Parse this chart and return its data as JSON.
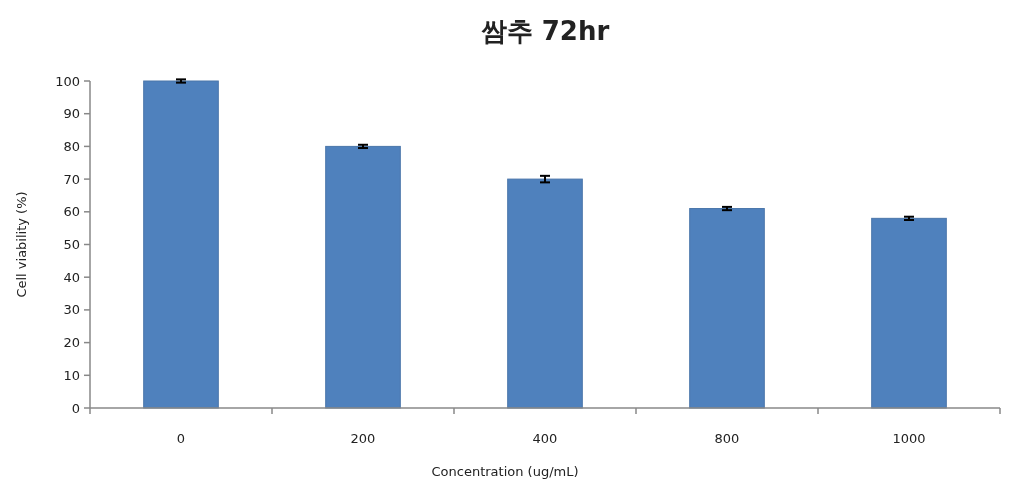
{
  "chart_data": {
    "type": "bar",
    "title": "쌈추 72hr",
    "xlabel": "Concentration (ug/mL)",
    "ylabel": "Cell viability (%)",
    "categories": [
      "0",
      "200",
      "400",
      "800",
      "1000"
    ],
    "values": [
      100,
      80,
      70,
      61,
      58
    ],
    "errors": [
      0.5,
      0.5,
      1,
      0.5,
      0.5
    ],
    "color": "#4f81bd",
    "ylim": [
      0,
      100
    ],
    "yticks": [
      0,
      10,
      20,
      30,
      40,
      50,
      60,
      70,
      80,
      90,
      100
    ],
    "grid": false
  }
}
